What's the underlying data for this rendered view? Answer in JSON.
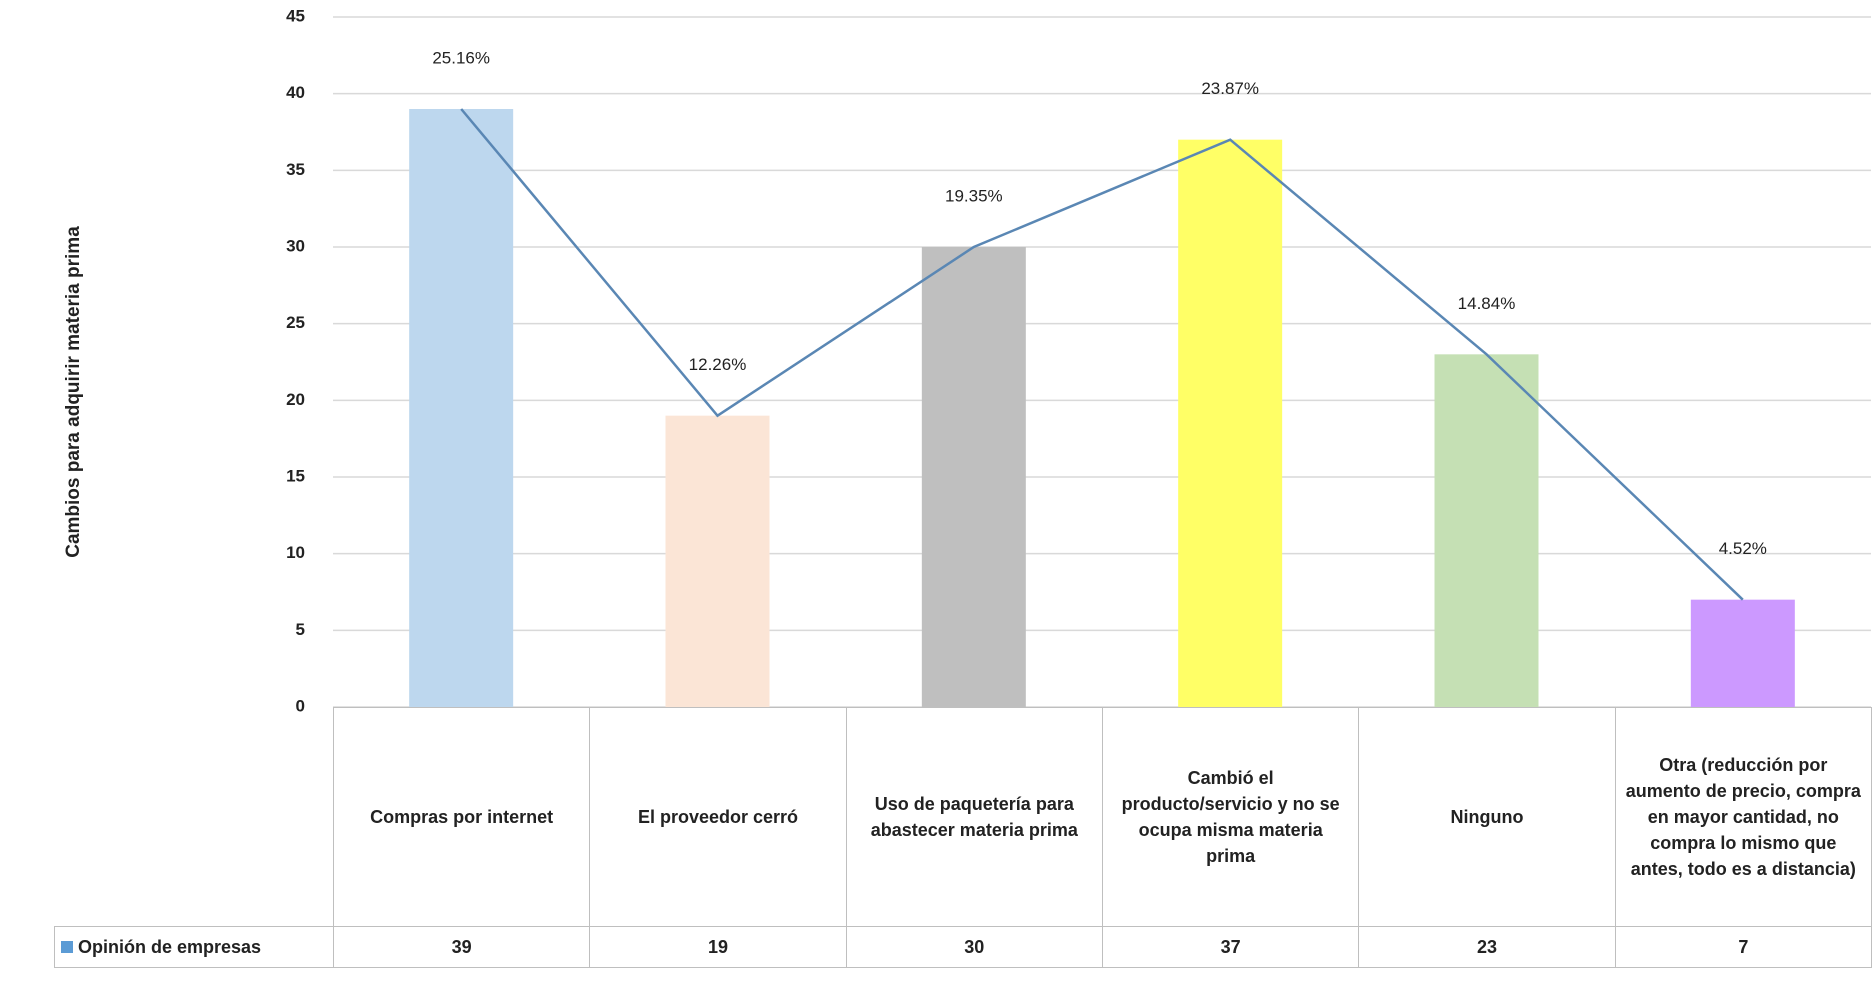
{
  "chart_data": {
    "type": "bar",
    "y_axis_label": "Cambios para adquirir materia prima",
    "categories": [
      "Compras por internet",
      "El proveedor cerró",
      "Uso de paquetería para abastecer materia prima",
      "Cambió el producto/servicio y no se ocupa misma materia prima",
      "Ninguno",
      "Otra (reducción por aumento de precio, compra en mayor cantidad, no compra lo mismo que antes, todo es a distancia)"
    ],
    "series": [
      {
        "name": "Opinión de empresas",
        "color": "#5b9bd5",
        "values": [
          39,
          19,
          30,
          37,
          23,
          7
        ]
      }
    ],
    "percent_labels": [
      "25.16%",
      "12.26%",
      "19.35%",
      "23.87%",
      "14.84%",
      "4.52%"
    ],
    "bar_colors": [
      "#bdd7ee",
      "#fbe5d6",
      "#bfbfbf",
      "#ffff66",
      "#c5e0b4",
      "#cc99ff"
    ],
    "line_color": "#5a87b4",
    "ylim": [
      0,
      45
    ],
    "yticks": [
      0,
      5,
      10,
      15,
      20,
      25,
      30,
      35,
      40,
      45
    ],
    "grid": true
  }
}
